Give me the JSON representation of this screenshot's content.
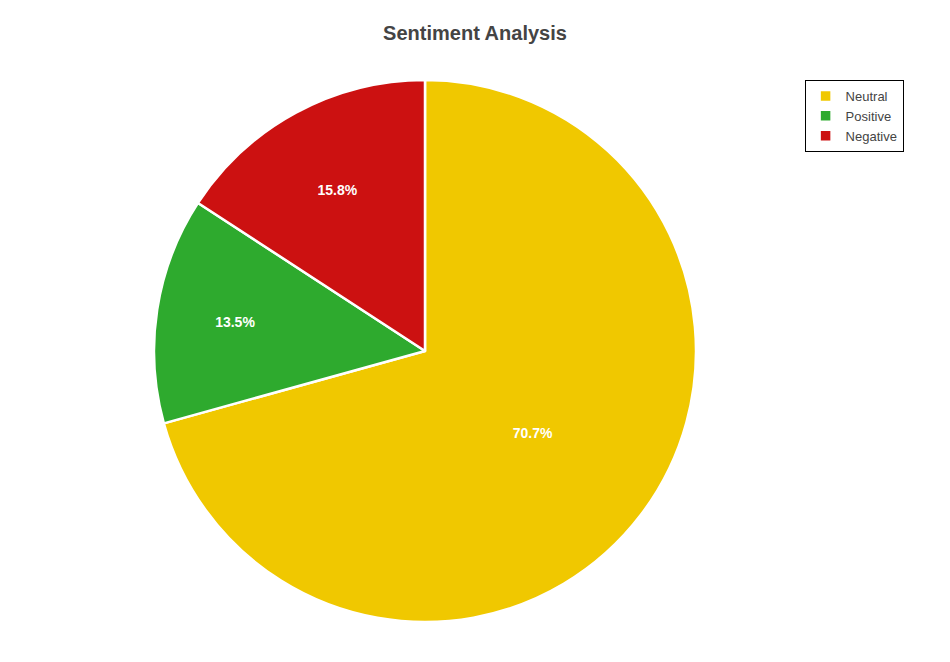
{
  "chart_data": {
    "type": "pie",
    "title": "Sentiment Analysis",
    "categories": [
      "Neutral",
      "Positive",
      "Negative"
    ],
    "values": [
      70.7,
      13.5,
      15.8
    ],
    "value_labels": [
      "70.7%",
      "13.5%",
      "15.8%"
    ],
    "colors": [
      "#f0c800",
      "#2eaa2e",
      "#cc1111"
    ],
    "data_labels": true,
    "legend": "upper right"
  }
}
